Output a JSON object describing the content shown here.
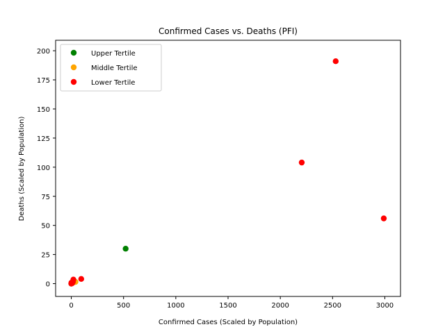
{
  "chart_data": {
    "type": "scatter",
    "title": "Confirmed Cases vs. Deaths (PFI)",
    "xlabel": "Confirmed Cases (Scaled by Population)",
    "ylabel": "Deaths (Scaled by Population)",
    "xlim": [
      -150,
      3150
    ],
    "ylim": [
      -11,
      209
    ],
    "xticks": [
      0,
      500,
      1000,
      1500,
      2000,
      2500,
      3000
    ],
    "yticks": [
      0,
      25,
      50,
      75,
      100,
      125,
      150,
      175,
      200
    ],
    "grid": false,
    "legend": "top-left",
    "series": [
      {
        "name": "Upper Tertile",
        "color": "#008000",
        "points": [
          [
            520,
            30
          ],
          [
            2,
            0.3
          ],
          [
            5,
            0.6
          ],
          [
            0,
            0
          ]
        ]
      },
      {
        "name": "Middle Tertile",
        "color": "#FFA500",
        "points": [
          [
            40,
            1.5
          ],
          [
            10,
            0.5
          ],
          [
            25,
            1.2
          ],
          [
            3,
            0.2
          ],
          [
            15,
            0.8
          ]
        ]
      },
      {
        "name": "Lower Tertile",
        "color": "#FF0000",
        "points": [
          [
            2530,
            191
          ],
          [
            2205,
            104
          ],
          [
            2990,
            56
          ],
          [
            95,
            4
          ],
          [
            20,
            3.5
          ],
          [
            5,
            0.5
          ],
          [
            10,
            1.0
          ],
          [
            0,
            0
          ],
          [
            2,
            0.2
          ],
          [
            8,
            0.3
          ],
          [
            15,
            1.5
          ],
          [
            1,
            0.8
          ]
        ]
      }
    ]
  }
}
